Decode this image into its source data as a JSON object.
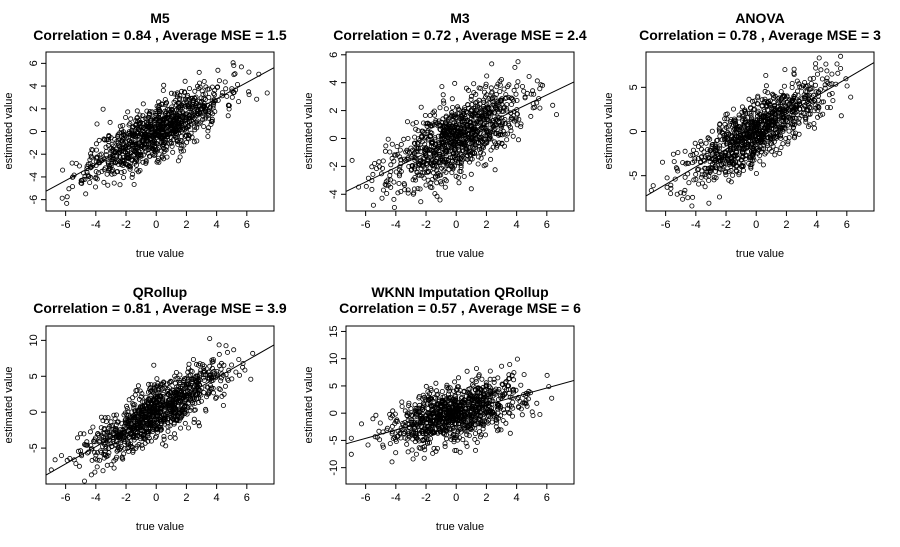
{
  "chart_data": [
    {
      "type": "scatter",
      "title": "M5",
      "subtitle": "Correlation =  0.84 , Average MSE =  1.5",
      "xlabel": "true value",
      "ylabel": "estimated value",
      "xlim": [
        -7.3,
        7.8
      ],
      "ylim": [
        -7.0,
        7.0
      ],
      "xticks": [
        -6,
        -4,
        -2,
        0,
        2,
        4,
        6
      ],
      "yticks": [
        -6,
        -4,
        -2,
        0,
        2,
        4,
        6
      ],
      "fit_line": {
        "slope": 0.72,
        "intercept": 0.0
      },
      "n_points": 1000,
      "noise_sd": 1.2,
      "seed": 11
    },
    {
      "type": "scatter",
      "title": "M3",
      "subtitle": "Correlation =  0.72 , Average MSE =  2.4",
      "xlabel": "true value",
      "ylabel": "estimated value",
      "xlim": [
        -7.3,
        7.8
      ],
      "ylim": [
        -5.2,
        6.2
      ],
      "xticks": [
        -6,
        -4,
        -2,
        0,
        2,
        4,
        6
      ],
      "yticks": [
        -4,
        -2,
        0,
        2,
        4,
        6
      ],
      "fit_line": {
        "slope": 0.52,
        "intercept": 0.0
      },
      "n_points": 1000,
      "noise_sd": 1.3,
      "seed": 23
    },
    {
      "type": "scatter",
      "title": "ANOVA",
      "subtitle": "Correlation =  0.78 , Average MSE =  3",
      "xlabel": "true value",
      "ylabel": "estimated value",
      "xlim": [
        -7.3,
        7.8
      ],
      "ylim": [
        -9.0,
        9.0
      ],
      "xticks": [
        -6,
        -4,
        -2,
        0,
        2,
        4,
        6
      ],
      "yticks": [
        -5,
        0,
        5
      ],
      "fit_line": {
        "slope": 1.0,
        "intercept": 0.0
      },
      "n_points": 1000,
      "noise_sd": 1.7,
      "seed": 37
    },
    {
      "type": "scatter",
      "title": "QRollup",
      "subtitle": "Correlation =  0.81 , Average MSE =  3.9",
      "xlabel": "true value",
      "ylabel": "estimated value",
      "xlim": [
        -7.3,
        7.8
      ],
      "ylim": [
        -10.0,
        12.0
      ],
      "xticks": [
        -6,
        -4,
        -2,
        0,
        2,
        4,
        6
      ],
      "yticks": [
        -5,
        0,
        5,
        10
      ],
      "fit_line": {
        "slope": 1.2,
        "intercept": 0.0
      },
      "n_points": 1000,
      "noise_sd": 1.9,
      "seed": 41
    },
    {
      "type": "scatter",
      "title": "WKNN Imputation QRollup",
      "subtitle": "Correlation =  0.57 , Average MSE =  6",
      "xlabel": "true value",
      "ylabel": "estimated value",
      "xlim": [
        -7.3,
        7.8
      ],
      "ylim": [
        -13.0,
        16.0
      ],
      "xticks": [
        -6,
        -4,
        -2,
        0,
        2,
        4,
        6
      ],
      "yticks": [
        -10,
        -5,
        0,
        5,
        10,
        15
      ],
      "fit_line": {
        "slope": 0.77,
        "intercept": 0.0
      },
      "n_points": 1000,
      "noise_sd": 2.6,
      "seed": 53
    }
  ]
}
